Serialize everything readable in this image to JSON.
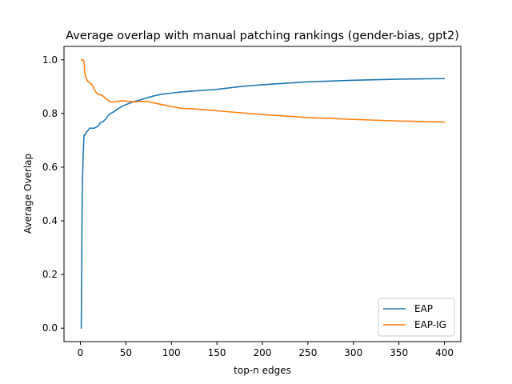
{
  "chart_data": {
    "type": "line",
    "title": "Average overlap with manual patching rankings (gender-bias, gpt2)",
    "xlabel": "top-n edges",
    "ylabel": "Average Overlap",
    "xlim": [
      -18,
      418
    ],
    "ylim": [
      -0.05,
      1.05
    ],
    "xticks": [
      0,
      50,
      100,
      150,
      200,
      250,
      300,
      350,
      400
    ],
    "yticks": [
      0.0,
      0.2,
      0.4,
      0.6,
      0.8,
      1.0
    ],
    "xtick_labels": [
      "0",
      "50",
      "100",
      "150",
      "200",
      "250",
      "300",
      "350",
      "400"
    ],
    "ytick_labels": [
      "0.0",
      "0.2",
      "0.4",
      "0.6",
      "0.8",
      "1.0"
    ],
    "grid": false,
    "legend_position": "lower-right",
    "series": [
      {
        "name": "EAP",
        "color": "#1f77b4",
        "x": [
          1,
          2,
          3,
          4,
          5,
          6,
          8,
          10,
          12,
          15,
          18,
          20,
          22,
          25,
          28,
          30,
          33,
          36,
          40,
          45,
          50,
          55,
          60,
          65,
          70,
          80,
          90,
          100,
          110,
          125,
          150,
          175,
          200,
          250,
          300,
          350,
          400
        ],
        "y": [
          0.0,
          0.5,
          0.64,
          0.72,
          0.72,
          0.728,
          0.735,
          0.745,
          0.745,
          0.745,
          0.75,
          0.755,
          0.765,
          0.77,
          0.78,
          0.79,
          0.8,
          0.805,
          0.815,
          0.825,
          0.833,
          0.84,
          0.845,
          0.85,
          0.855,
          0.865,
          0.872,
          0.876,
          0.88,
          0.884,
          0.89,
          0.9,
          0.907,
          0.918,
          0.924,
          0.928,
          0.93
        ]
      },
      {
        "name": "EAP-IG",
        "color": "#ff7f0e",
        "x": [
          1,
          3,
          4,
          5,
          6,
          8,
          10,
          12,
          14,
          16,
          18,
          20,
          22,
          25,
          28,
          30,
          32,
          35,
          40,
          45,
          50,
          55,
          60,
          65,
          70,
          75,
          80,
          90,
          100,
          110,
          125,
          150,
          175,
          200,
          250,
          300,
          350,
          400
        ],
        "y": [
          1.0,
          1.0,
          0.99,
          0.95,
          0.935,
          0.92,
          0.915,
          0.91,
          0.9,
          0.885,
          0.875,
          0.87,
          0.87,
          0.865,
          0.855,
          0.85,
          0.845,
          0.842,
          0.845,
          0.847,
          0.846,
          0.845,
          0.843,
          0.845,
          0.845,
          0.844,
          0.84,
          0.833,
          0.826,
          0.82,
          0.817,
          0.81,
          0.803,
          0.796,
          0.785,
          0.778,
          0.772,
          0.768
        ]
      }
    ]
  }
}
